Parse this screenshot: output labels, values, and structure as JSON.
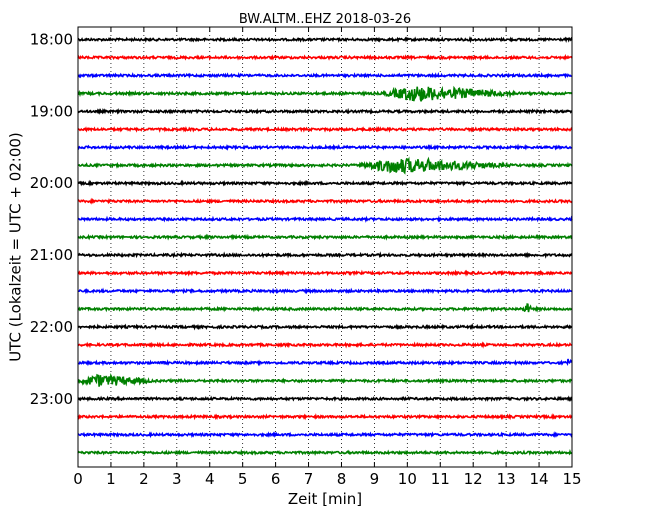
{
  "chart_data": {
    "type": "line",
    "title": "BW.ALTM..EHZ 2018-03-26",
    "xlabel": "Zeit  [min]",
    "ylabel": "UTC (Lokalzeit = UTC + 02:00)",
    "xlim": [
      0,
      15
    ],
    "x_ticks": [
      "0",
      "1",
      "2",
      "3",
      "4",
      "5",
      "6",
      "7",
      "8",
      "9",
      "10",
      "11",
      "12",
      "13",
      "14",
      "15"
    ],
    "y_ticks": [
      "18:00",
      "19:00",
      "20:00",
      "21:00",
      "22:00",
      "23:00"
    ],
    "grid": true,
    "trace_colors": [
      "#000000",
      "#ff0000",
      "#0000ff",
      "#008000"
    ],
    "traces": [
      {
        "start": "18:00",
        "color": "#000000"
      },
      {
        "start": "18:15",
        "color": "#ff0000"
      },
      {
        "start": "18:30",
        "color": "#0000ff"
      },
      {
        "start": "18:45",
        "color": "#008000",
        "events": [
          {
            "start_min": 9.2,
            "end_min": 13.5,
            "peak_min": 10.2,
            "amplitude": 0.4
          }
        ]
      },
      {
        "start": "19:00",
        "color": "#000000"
      },
      {
        "start": "19:15",
        "color": "#ff0000"
      },
      {
        "start": "19:30",
        "color": "#0000ff"
      },
      {
        "start": "19:45",
        "color": "#008000",
        "events": [
          {
            "start_min": 8.5,
            "end_min": 13.2,
            "peak_min": 9.6,
            "amplitude": 0.4
          }
        ]
      },
      {
        "start": "20:00",
        "color": "#000000"
      },
      {
        "start": "20:15",
        "color": "#ff0000"
      },
      {
        "start": "20:30",
        "color": "#0000ff"
      },
      {
        "start": "20:45",
        "color": "#008000"
      },
      {
        "start": "21:00",
        "color": "#000000"
      },
      {
        "start": "21:15",
        "color": "#ff0000"
      },
      {
        "start": "21:30",
        "color": "#0000ff"
      },
      {
        "start": "21:45",
        "color": "#008000",
        "events": [
          {
            "start_min": 13.5,
            "end_min": 13.8,
            "peak_min": 13.6,
            "amplitude": 0.3
          }
        ]
      },
      {
        "start": "22:00",
        "color": "#000000"
      },
      {
        "start": "22:15",
        "color": "#ff0000"
      },
      {
        "start": "22:30",
        "color": "#0000ff",
        "events": [
          {
            "start_min": 14.8,
            "end_min": 15.0,
            "peak_min": 14.9,
            "amplitude": 0.2
          }
        ]
      },
      {
        "start": "22:45",
        "color": "#008000",
        "events": [
          {
            "start_min": 0.0,
            "end_min": 2.4,
            "peak_min": 0.6,
            "amplitude": 0.3
          }
        ]
      },
      {
        "start": "23:00",
        "color": "#000000"
      },
      {
        "start": "23:15",
        "color": "#ff0000"
      },
      {
        "start": "23:30",
        "color": "#0000ff"
      },
      {
        "start": "23:45",
        "color": "#008000"
      }
    ]
  }
}
